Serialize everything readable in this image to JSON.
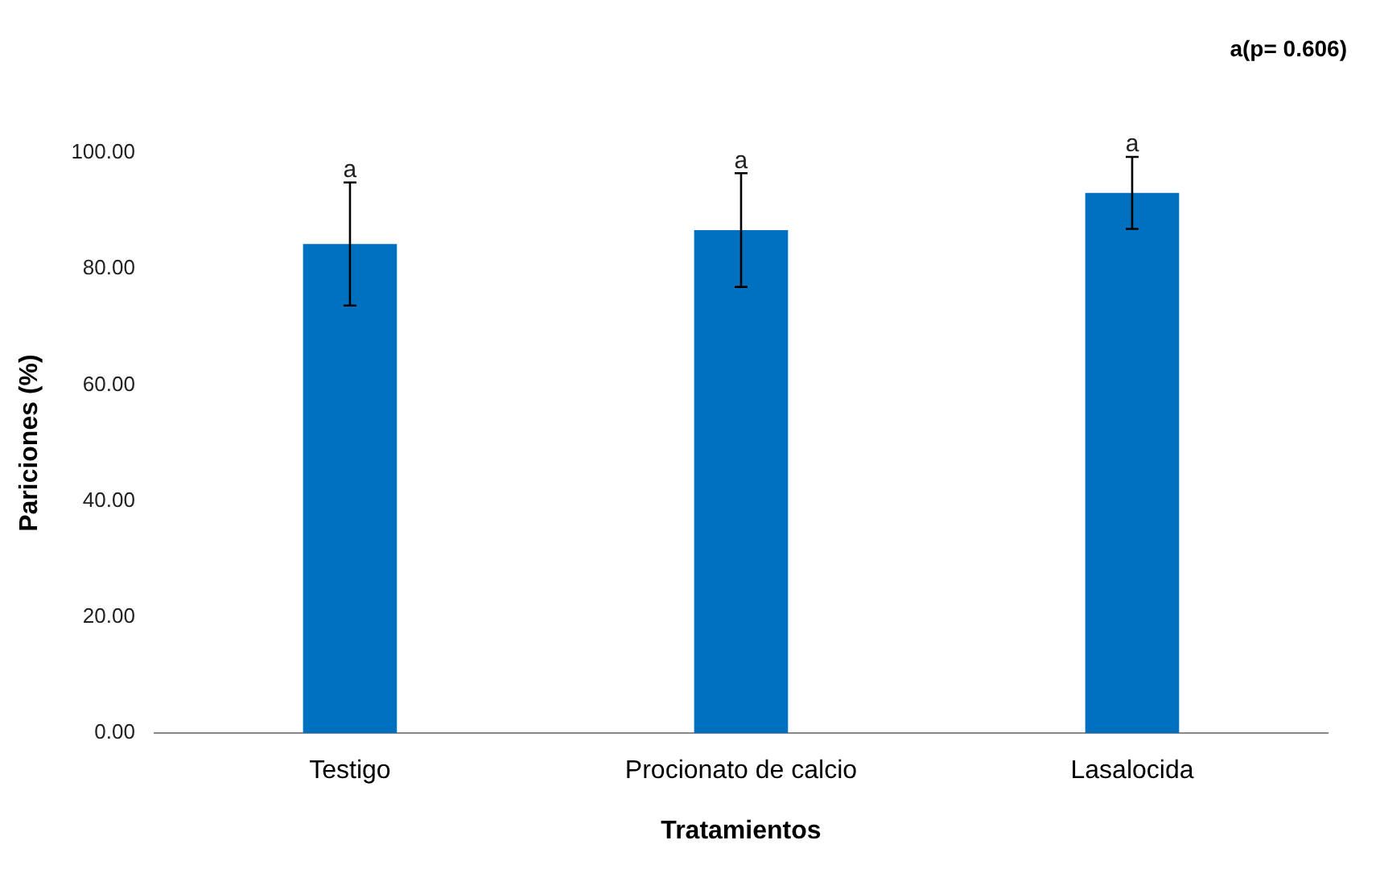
{
  "chart_data": {
    "type": "bar",
    "xlabel": "Tratamientos",
    "ylabel": "Pariciones (%)",
    "categories": [
      "Testigo",
      "Procionato de calcio",
      "Lasalocida"
    ],
    "values": [
      84.3,
      86.7,
      93.1
    ],
    "color": "#0070c0",
    "errors": [
      10.6,
      9.8,
      6.2
    ],
    "ylim": [
      0,
      100
    ],
    "yticks": [
      {
        "value": 0,
        "label": "0.00"
      },
      {
        "value": 20,
        "label": "20.00"
      },
      {
        "value": 40,
        "label": "40.00"
      },
      {
        "value": 60,
        "label": "60.00"
      },
      {
        "value": 80,
        "label": "80.00"
      },
      {
        "value": 100,
        "label": "100.00"
      }
    ],
    "annotations": [
      "a(p= 0.606)",
      {
        "text": "a",
        "x": "Testigo",
        "y": 94.9
      },
      {
        "text": "a",
        "x": "Procionato de calcio",
        "y": 96.5
      },
      {
        "text": "a",
        "x": "Lasalocida",
        "y": 99.3
      }
    ]
  }
}
